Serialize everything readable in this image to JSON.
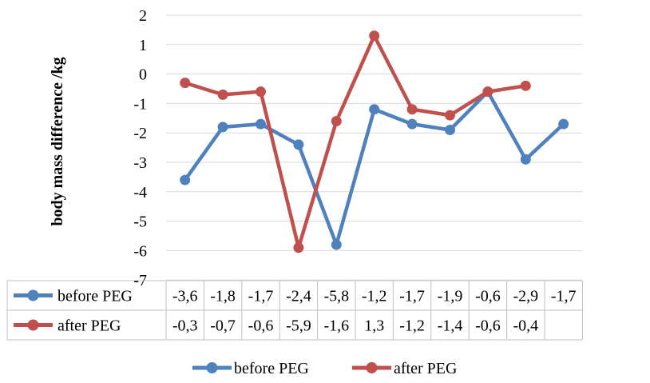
{
  "chart_data": {
    "type": "line",
    "title": "",
    "xlabel": "",
    "ylabel": "body mass difference /kg",
    "ylim": [
      -7,
      2
    ],
    "yticks": [
      "2",
      "1",
      "0",
      "-1",
      "-2",
      "-3",
      "-4",
      "-5",
      "-6",
      "-7"
    ],
    "grid": true,
    "legend_position": "bottom",
    "series": [
      {
        "name": "before PEG",
        "color": "#4f81bd",
        "values": [
          -3.6,
          -1.8,
          -1.7,
          -2.4,
          -5.8,
          -1.2,
          -1.7,
          -1.9,
          -0.6,
          -2.9,
          -1.7
        ],
        "labels": [
          "-3,6",
          "-1,8",
          "-1,7",
          "-2,4",
          "-5,8",
          "-1,2",
          "-1,7",
          "-1,9",
          "-0,6",
          "-2,9",
          "-1,7"
        ]
      },
      {
        "name": "after PEG",
        "color": "#c0504d",
        "values": [
          -0.3,
          -0.7,
          -0.6,
          -5.9,
          -1.6,
          1.3,
          -1.2,
          -1.4,
          -0.6,
          -0.4
        ],
        "labels": [
          "-0,3",
          "-0,7",
          "-0,6",
          "-5,9",
          "-1,6",
          "1,3",
          "-1,2",
          "-1,4",
          "-0,6",
          "-0,4"
        ]
      }
    ]
  }
}
